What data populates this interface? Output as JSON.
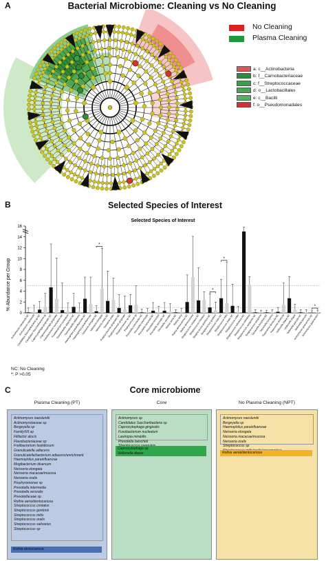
{
  "panel_a": {
    "letter": "A",
    "title": "Bacterial Microbiome: Cleaning vs No Cleaning",
    "legend": [
      {
        "label": "No Cleaning",
        "color": "#e02020"
      },
      {
        "label": "Plasma Cleaning",
        "color": "#1f9a3a"
      }
    ],
    "taxa": [
      {
        "label": "a: c__Actinobacteria",
        "color": "#e05555"
      },
      {
        "label": "b: f__Carnobacteriaceae",
        "color": "#2e8b3a"
      },
      {
        "label": "c: f__Streptococcaceae",
        "color": "#3aa045"
      },
      {
        "label": "d: o__Lactobacillales",
        "color": "#46a850"
      },
      {
        "label": "e: c__Bacilli",
        "color": "#55b060"
      },
      {
        "label": "f: o__Pseudomonadales",
        "color": "#d83030"
      }
    ]
  },
  "panel_b": {
    "letter": "B",
    "title": "Selected Species of Interest",
    "footnote_1": "NC: No Cleaning",
    "footnote_2": "*: P >0.05",
    "chart_data": {
      "type": "bar",
      "title": "Selected Species of Interest",
      "ylabel": "% Abundance per Group",
      "yticks": [
        0,
        2,
        4,
        6,
        8,
        10,
        12,
        14,
        16
      ],
      "ylim": [
        0,
        16
      ],
      "axis_break": "between 14 and 16",
      "dotted_reference_lines": [
        1,
        5
      ],
      "categories": [
        "Actinomyces naeslundii NC",
        "Actinomyces naeslundii",
        "Candidatus Saccharibacteria sp NC",
        "Candidatus Saccharibacteria sp",
        "Capnocytophaga gingivalis NC",
        "Capnocytophaga gingivalis",
        "Fusobacterium nucleatum NC",
        "Fusobacterium nucleatum",
        "Granulicatella adiacens NC",
        "Granulicatella adiacens",
        "Haemophilus parainfluenzae NC",
        "Haemophilus parainfluenzae",
        "Neisseria elongata NC",
        "Neisseria elongata",
        "Neisseria oralis NC",
        "Neisseria oralis",
        "Porphyromonas gingivalis NC",
        "Porphyromonas gingivalis",
        "Porphyromonas sp NC",
        "Porphyromonas sp",
        "Prevotella intermedia NC",
        "Prevotella intermedia",
        "Prevotella loescheii NC",
        "Prevotella loescheii",
        "Prevotella veroralis NC",
        "Prevotella veroralis",
        "Rothia aeria NC",
        "Rothia aeria",
        "Rothia dentocariosa NC",
        "Rothia dentocariosa",
        "Streptococcus cristatus NC",
        "Streptococcus cristatus",
        "Streptococcus gordonii NC",
        "Streptococcus gordonii",
        "Streptococcus mitis NC",
        "Streptococcus mitis",
        "Streptococcus oralis NC",
        "Streptococcus oralis",
        "Streptococcus salivarius NC",
        "Streptococcus salivarius",
        "Streptococcus sanguinis NC",
        "Streptococcus sanguinis",
        "Tannerella forsythia NC",
        "Tannerella forsythia",
        "Treponema denticola NC",
        "Treponema denticola",
        "Veillonella dispar NC",
        "Veillonella dispar",
        "Veillonella parvula NC",
        "Veillonella parvula",
        "Actinomyces graevenitzii NC",
        "Actinomyces graevenitzii"
      ],
      "values": [
        0.1,
        0.2,
        0.6,
        1.1,
        4.7,
        2.6,
        0.5,
        0.3,
        1.1,
        0.3,
        2.6,
        1.6,
        0.3,
        4.4,
        2.2,
        2.4,
        0.9,
        0.6,
        1.4,
        1.5,
        0.1,
        0.2,
        0.4,
        0.2,
        0.4,
        0.2,
        0.1,
        0.2,
        2.0,
        6.6,
        2.3,
        2.4,
        1.0,
        0.5,
        2.7,
        1.8,
        1.3,
        0.2,
        15.0,
        5.2,
        0.1,
        0.1,
        0.1,
        0.1,
        0.2,
        1.5,
        2.7,
        0.6,
        0.1,
        0.1,
        0.0,
        0.1
      ],
      "errors": [
        0.8,
        1.2,
        1.5,
        2.5,
        8.0,
        7.5,
        5.0,
        1.5,
        2.5,
        1.5,
        4.0,
        5.0,
        1.0,
        7.5,
        5.5,
        4.0,
        2.5,
        2.5,
        2.0,
        3.5,
        0.6,
        0.6,
        1.5,
        1.0,
        1.5,
        1.5,
        0.5,
        0.6,
        5.0,
        7.5,
        6.0,
        1.5,
        2.5,
        1.5,
        3.5,
        7.5,
        4.0,
        1.0,
        0.8,
        1.5,
        0.5,
        0.4,
        0.4,
        0.5,
        0.8,
        4.0,
        4.0,
        1.0,
        0.5,
        0.5,
        0.4,
        0.4
      ],
      "significance_pairs": [
        [
          12,
          13
        ],
        [
          32,
          33
        ],
        [
          34,
          35
        ],
        [
          50,
          51
        ]
      ],
      "series_colors": {
        "nc": "#111111",
        "plasma": "#d3d3d3"
      }
    }
  },
  "panel_c": {
    "letter": "C",
    "title": "Core microbiome",
    "columns": [
      {
        "title": "Plasma Cleaning (PT)",
        "bg": "#bccbe4",
        "species": [
          "Actinomyces naeslundii",
          "Actinomycetaceae sp",
          "Bergeyella sp",
          "FamilyXIII sp",
          "Filifactor alocis",
          "Flavobacteriaceae sp",
          "Fretibacterium fastidiosum",
          "Granulicatella adiacens",
          "Granulicatella/bacterium adiacens/enrichment",
          "Haemophilus parainfluenzae",
          "Mogibacterium diversum",
          "Neisseria elongata",
          "Neisseria macacae/mucosa",
          "Neisseria oralis",
          "Porphyromonas sp",
          "Prevotella intermedia",
          "Prevotella veroralis",
          "Prevotellaceae sp",
          "Rothia aeria/dentocariosa",
          "Streptococcus cristatus",
          "Streptococcus gordonii",
          "Streptococcus mitis",
          "Streptococcus oralis",
          "Streptococcus salivarius",
          "Streptococcus sp"
        ],
        "highlight": "Rothia dentocariosa",
        "highlight_color": "#4a6fb5"
      },
      {
        "title": "Core",
        "bg": "#b9dec3",
        "species": [
          "Actinomyces sp",
          "Candidatus Saccharibacteria sp",
          "Capnocytophaga gingivalis",
          "Fusobacterium nucleatum",
          "Lautropia mirabilis",
          "Prevotella loescheii",
          "Streptococcus sanguinis"
        ],
        "highlight_lines": [
          "Capnocytophaga sp",
          "Veillonella dispar"
        ],
        "highlight_color": "#2ea84a"
      },
      {
        "title": "No Plasma Cleaning (NPT)",
        "bg": "#f6e2a6",
        "species": [
          "Actinomyces naeslundii",
          "Bergeyella sp",
          "Haemophilus parainfluenzae",
          "Neisseria elongata",
          "Neisseria macacae/mucosa",
          "Neisseria oralis",
          "Streptococcus sp",
          "Streptococcus mitis/oralis/pneumoniae"
        ],
        "highlight": "Rothia aerial/dentocariosa",
        "highlight_color": "#f2b32a"
      }
    ]
  }
}
